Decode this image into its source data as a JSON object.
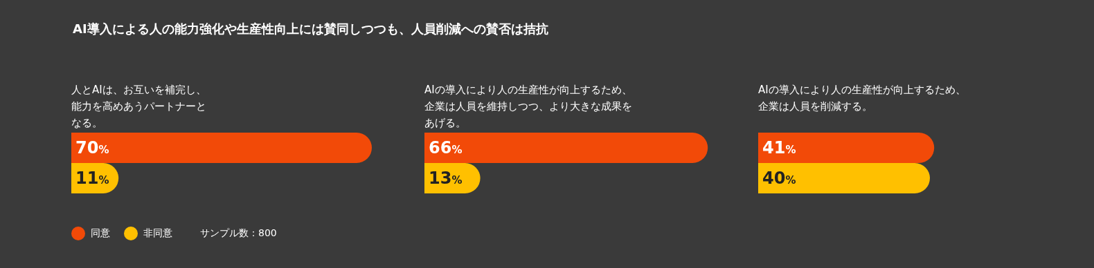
{
  "chart_data": [
    {
      "type": "bar",
      "orientation": "horizontal",
      "title": "AI導入による人の能力強化や生産性向上には賛同しつつも、人員削減への賛否は拮抗",
      "subtitle": "人とAIは、お互いを補完し、能力を高めあうパートナーとなる。",
      "categories": [
        null
      ],
      "legend": "bottom left",
      "annotations": [
        "サンプル数：800"
      ],
      "series": [
        {
          "name": "同意",
          "color": "#f24a08",
          "values": [
            70
          ],
          "value_labels": [
            "70%"
          ]
        },
        {
          "name": "非同意",
          "color": "#ffc000",
          "values": [
            11
          ],
          "value_labels": [
            "11%"
          ]
        }
      ]
    },
    {
      "type": "bar",
      "orientation": "horizontal",
      "subtitle": "AIの導入により人の生産性が向上するため、企業は人員を維持しつつ、より大きな成果をあげる。",
      "categories": [
        null
      ],
      "series": [
        {
          "color": "#f24a08",
          "values": [
            66
          ],
          "value_labels": [
            "66%"
          ]
        },
        {
          "color": "#ffc000",
          "values": [
            13
          ],
          "value_labels": [
            "13%"
          ]
        }
      ]
    },
    {
      "type": "bar",
      "orientation": "horizontal",
      "subtitle": "AIの導入により人の生産性が向上するため、企業は人員を削減する。",
      "categories": [
        null
      ],
      "series": [
        {
          "color": "#f24a08",
          "values": [
            41
          ],
          "value_labels": [
            "41%"
          ]
        },
        {
          "color": "#ffc000",
          "values": [
            40
          ],
          "value_labels": [
            "40%"
          ]
        }
      ]
    }
  ]
}
